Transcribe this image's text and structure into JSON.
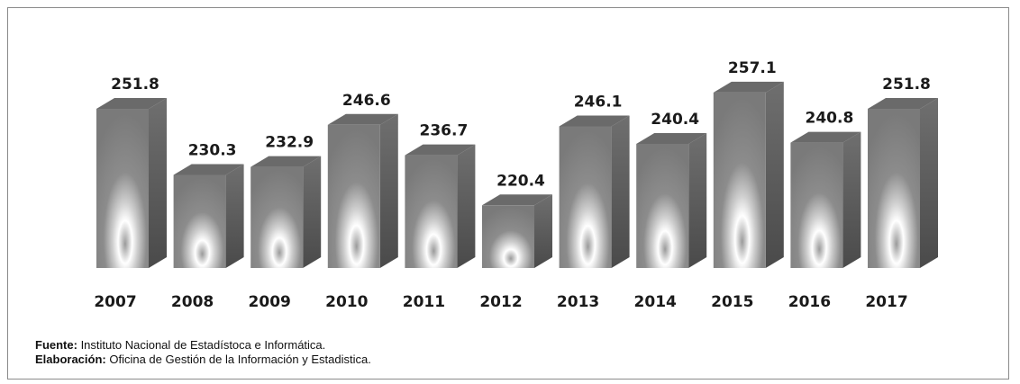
{
  "chart_data": {
    "type": "bar",
    "categories": [
      "2007",
      "2008",
      "2009",
      "2010",
      "2011",
      "2012",
      "2013",
      "2014",
      "2015",
      "2016",
      "2017"
    ],
    "values": [
      251.8,
      230.3,
      232.9,
      246.6,
      236.7,
      220.4,
      246.1,
      240.4,
      257.1,
      240.8,
      251.8
    ],
    "value_labels": [
      "251.8",
      "230.3",
      "232.9",
      "246.6",
      "236.7",
      "220.4",
      "246.1",
      "240.4",
      "257.1",
      "240.8",
      "251.8"
    ],
    "ylim": [
      200,
      260
    ],
    "grid": false,
    "legend": "none"
  },
  "notes": {
    "source_label": "Fuente:",
    "source_text": " Instituto Nacional de Estadístoca e Informática.",
    "elaboration_label": "Elaboración:",
    "elaboration_text": " Oficina de Gestión de la Información y Estadistica."
  }
}
